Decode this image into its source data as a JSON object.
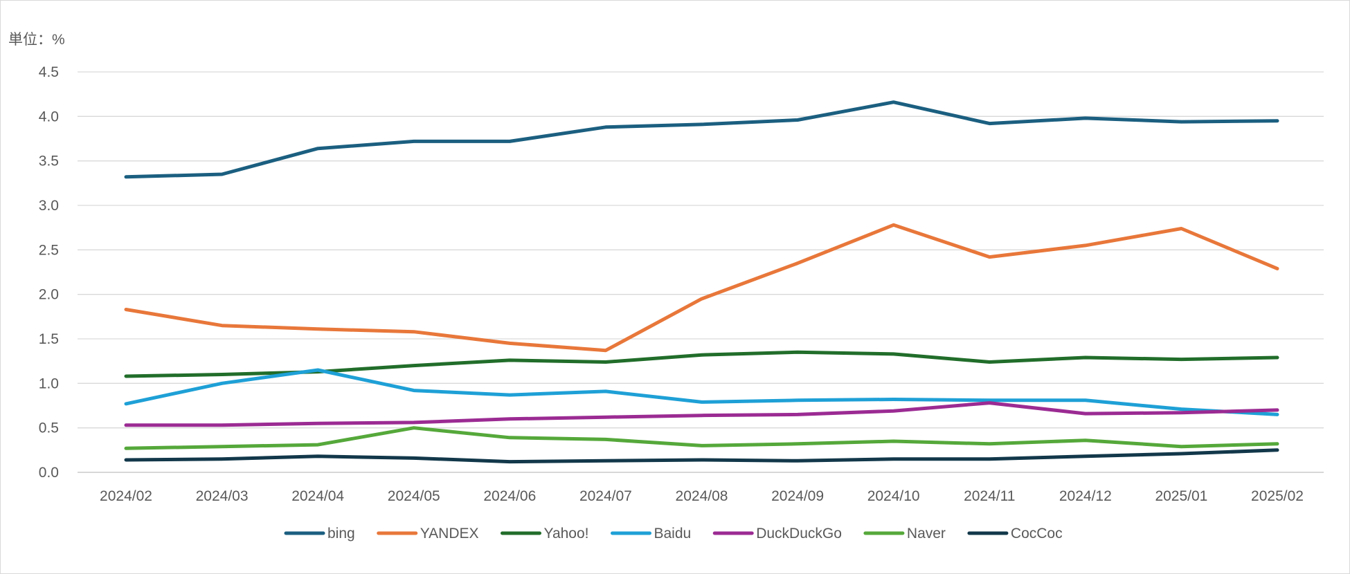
{
  "chart_data": {
    "type": "line",
    "unit_label": "単位：%",
    "categories": [
      "2024/02",
      "2024/03",
      "2024/04",
      "2024/05",
      "2024/06",
      "2024/07",
      "2024/08",
      "2024/09",
      "2024/10",
      "2024/11",
      "2024/12",
      "2025/01",
      "2025/02"
    ],
    "ylim": [
      0,
      4.5
    ],
    "yticks": [
      "0.0",
      "0.5",
      "1.0",
      "1.5",
      "2.0",
      "2.5",
      "3.0",
      "3.5",
      "4.0",
      "4.5"
    ],
    "grid": true,
    "legend_position": "bottom",
    "series": [
      {
        "name": "bing",
        "color": "#1b5f80",
        "values": [
          3.32,
          3.35,
          3.64,
          3.72,
          3.72,
          3.88,
          3.91,
          3.96,
          4.16,
          3.92,
          3.98,
          3.94,
          3.95
        ]
      },
      {
        "name": "YANDEX",
        "color": "#e8773a",
        "values": [
          1.83,
          1.65,
          1.61,
          1.58,
          1.45,
          1.37,
          1.95,
          2.35,
          2.78,
          2.42,
          2.55,
          2.74,
          2.29
        ]
      },
      {
        "name": "Yahoo!",
        "color": "#216d2a",
        "values": [
          1.08,
          1.1,
          1.13,
          1.2,
          1.26,
          1.24,
          1.32,
          1.35,
          1.33,
          1.24,
          1.29,
          1.27,
          1.29
        ]
      },
      {
        "name": "Baidu",
        "color": "#1ea0d6",
        "values": [
          0.77,
          1.0,
          1.15,
          0.92,
          0.87,
          0.91,
          0.79,
          0.81,
          0.82,
          0.81,
          0.81,
          0.71,
          0.65
        ]
      },
      {
        "name": "DuckDuckGo",
        "color": "#9b2b93",
        "values": [
          0.53,
          0.53,
          0.55,
          0.56,
          0.6,
          0.62,
          0.64,
          0.65,
          0.69,
          0.78,
          0.66,
          0.67,
          0.7
        ]
      },
      {
        "name": "Naver",
        "color": "#55a83a",
        "values": [
          0.27,
          0.29,
          0.31,
          0.5,
          0.39,
          0.37,
          0.3,
          0.32,
          0.35,
          0.32,
          0.36,
          0.29,
          0.32
        ]
      },
      {
        "name": "CocCoc",
        "color": "#12384a",
        "values": [
          0.14,
          0.15,
          0.18,
          0.16,
          0.12,
          0.13,
          0.14,
          0.13,
          0.15,
          0.15,
          0.18,
          0.21,
          0.25
        ]
      }
    ]
  }
}
